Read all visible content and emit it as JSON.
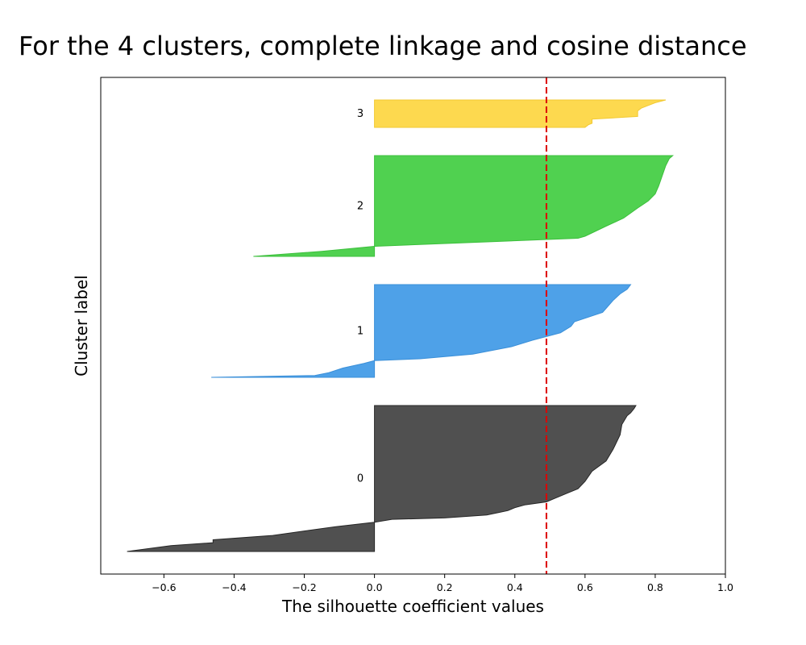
{
  "chart_data": {
    "type": "area",
    "title": "For the 4 clusters, complete linkage and cosine distance",
    "xlabel": "The silhouette coefficient values",
    "ylabel": "Cluster label",
    "xlim": [
      -0.78,
      1.0
    ],
    "x_ticks": [
      -0.6,
      -0.4,
      -0.2,
      0.0,
      0.2,
      0.4,
      0.6,
      0.8,
      1.0
    ],
    "x_tick_labels": [
      "−0.6",
      "−0.4",
      "−0.2",
      "0.0",
      "0.2",
      "0.4",
      "0.6",
      "0.8",
      "1.0"
    ],
    "y_ticks_visible": false,
    "grid": false,
    "average_silhouette": 0.49,
    "average_line_color": "#dd0000",
    "series": [
      {
        "label": "0",
        "color": "#4d4d4d",
        "edge_color": "#262626",
        "profile": [
          {
            "s": 0.0,
            "v": 0.745
          },
          {
            "s": 0.02,
            "v": 0.74
          },
          {
            "s": 0.05,
            "v": 0.73
          },
          {
            "s": 0.07,
            "v": 0.72
          },
          {
            "s": 0.13,
            "v": 0.705
          },
          {
            "s": 0.2,
            "v": 0.7
          },
          {
            "s": 0.3,
            "v": 0.68
          },
          {
            "s": 0.38,
            "v": 0.66
          },
          {
            "s": 0.45,
            "v": 0.62
          },
          {
            "s": 0.52,
            "v": 0.6
          },
          {
            "s": 0.57,
            "v": 0.58
          },
          {
            "s": 0.6,
            "v": 0.55
          },
          {
            "s": 0.64,
            "v": 0.51
          },
          {
            "s": 0.66,
            "v": 0.49
          },
          {
            "s": 0.68,
            "v": 0.43
          },
          {
            "s": 0.7,
            "v": 0.4
          },
          {
            "s": 0.72,
            "v": 0.38
          },
          {
            "s": 0.75,
            "v": 0.32
          },
          {
            "s": 0.77,
            "v": 0.2
          },
          {
            "s": 0.78,
            "v": 0.05
          },
          {
            "s": 0.8,
            "v": 0.0
          },
          {
            "s": 0.83,
            "v": -0.11
          },
          {
            "s": 0.86,
            "v": -0.2
          },
          {
            "s": 0.89,
            "v": -0.29
          },
          {
            "s": 0.92,
            "v": -0.46
          },
          {
            "s": 0.94,
            "v": -0.46
          },
          {
            "s": 0.96,
            "v": -0.58
          },
          {
            "s": 1.0,
            "v": -0.705
          }
        ]
      },
      {
        "label": "1",
        "color": "#4a9fe8",
        "edge_color": "#3a8fd8",
        "profile": [
          {
            "s": 0.0,
            "v": 0.73
          },
          {
            "s": 0.05,
            "v": 0.72
          },
          {
            "s": 0.1,
            "v": 0.7
          },
          {
            "s": 0.17,
            "v": 0.68
          },
          {
            "s": 0.3,
            "v": 0.65
          },
          {
            "s": 0.4,
            "v": 0.57
          },
          {
            "s": 0.45,
            "v": 0.56
          },
          {
            "s": 0.52,
            "v": 0.53
          },
          {
            "s": 0.6,
            "v": 0.45
          },
          {
            "s": 0.67,
            "v": 0.39
          },
          {
            "s": 0.75,
            "v": 0.28
          },
          {
            "s": 0.8,
            "v": 0.13
          },
          {
            "s": 0.82,
            "v": 0.0
          },
          {
            "s": 0.85,
            "v": -0.03
          },
          {
            "s": 0.9,
            "v": -0.09
          },
          {
            "s": 0.95,
            "v": -0.13
          },
          {
            "s": 0.98,
            "v": -0.17
          },
          {
            "s": 1.0,
            "v": -0.465
          }
        ]
      },
      {
        "label": "2",
        "color": "#4cd04c",
        "edge_color": "#3cbf3c",
        "profile": [
          {
            "s": 0.0,
            "v": 0.85
          },
          {
            "s": 0.03,
            "v": 0.84
          },
          {
            "s": 0.1,
            "v": 0.83
          },
          {
            "s": 0.2,
            "v": 0.82
          },
          {
            "s": 0.3,
            "v": 0.81
          },
          {
            "s": 0.38,
            "v": 0.8
          },
          {
            "s": 0.45,
            "v": 0.78
          },
          {
            "s": 0.52,
            "v": 0.75
          },
          {
            "s": 0.57,
            "v": 0.73
          },
          {
            "s": 0.62,
            "v": 0.71
          },
          {
            "s": 0.7,
            "v": 0.66
          },
          {
            "s": 0.75,
            "v": 0.63
          },
          {
            "s": 0.8,
            "v": 0.6
          },
          {
            "s": 0.82,
            "v": 0.58
          },
          {
            "s": 0.9,
            "v": 0.0
          },
          {
            "s": 0.95,
            "v": -0.15
          },
          {
            "s": 1.0,
            "v": -0.345
          }
        ]
      },
      {
        "label": "3",
        "color": "#fdd84b",
        "edge_color": "#f2c932",
        "profile": [
          {
            "s": 0.0,
            "v": 0.83
          },
          {
            "s": 0.1,
            "v": 0.8
          },
          {
            "s": 0.2,
            "v": 0.78
          },
          {
            "s": 0.3,
            "v": 0.76
          },
          {
            "s": 0.4,
            "v": 0.75
          },
          {
            "s": 0.5,
            "v": 0.75
          },
          {
            "s": 0.6,
            "v": 0.75
          },
          {
            "s": 0.7,
            "v": 0.62
          },
          {
            "s": 0.85,
            "v": 0.62
          },
          {
            "s": 0.9,
            "v": 0.61
          },
          {
            "s": 1.0,
            "v": 0.6
          }
        ]
      }
    ]
  }
}
